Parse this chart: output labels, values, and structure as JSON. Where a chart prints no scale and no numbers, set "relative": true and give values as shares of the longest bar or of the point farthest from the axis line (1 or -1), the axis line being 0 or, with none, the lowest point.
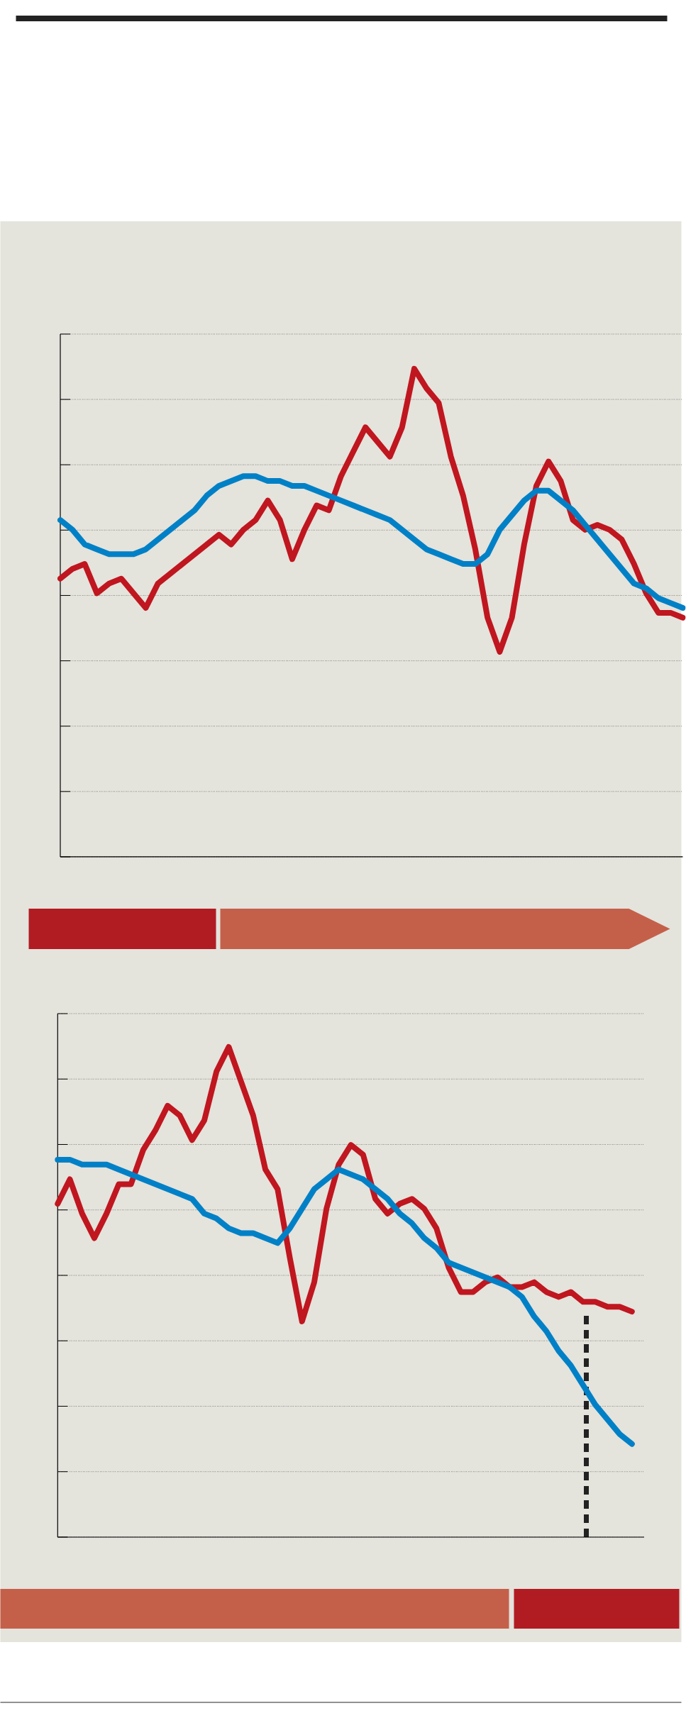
{
  "chart_data": [
    {
      "type": "line",
      "relative": true,
      "grid": "y",
      "categories": [
        null,
        null,
        null,
        null,
        null,
        null,
        null,
        null,
        null,
        null,
        null,
        null,
        null,
        null,
        null,
        null,
        null,
        null,
        null,
        null,
        null,
        null,
        null,
        null,
        null,
        null,
        null,
        null,
        null,
        null,
        null,
        null,
        null,
        null,
        null,
        null,
        null,
        null,
        null,
        null,
        null,
        null,
        null,
        null,
        null,
        null,
        null,
        null,
        null,
        null,
        null,
        null
      ],
      "series": [
        {
          "color": "#c0161f",
          "values": [
            0.57,
            0.59,
            0.6,
            0.54,
            0.56,
            0.57,
            0.54,
            0.51,
            0.56,
            0.58,
            0.6,
            0.62,
            0.64,
            0.66,
            0.64,
            0.67,
            0.69,
            0.73,
            0.69,
            0.61,
            0.67,
            0.72,
            0.71,
            0.78,
            0.83,
            0.88,
            0.85,
            0.82,
            0.88,
            1.0,
            0.96,
            0.93,
            0.82,
            0.74,
            0.63,
            0.49,
            0.42,
            0.49,
            0.64,
            0.76,
            0.81,
            0.77,
            0.69,
            0.67,
            0.68,
            0.67,
            0.65,
            0.6,
            0.54,
            0.5,
            0.5,
            0.49
          ]
        },
        {
          "color": "#0080c6",
          "values": [
            0.69,
            0.67,
            0.64,
            0.63,
            0.62,
            0.62,
            0.62,
            0.63,
            0.65,
            0.67,
            0.69,
            0.71,
            0.74,
            0.76,
            0.77,
            0.78,
            0.78,
            0.77,
            0.77,
            0.76,
            0.76,
            0.75,
            0.74,
            0.73,
            0.72,
            0.71,
            0.7,
            0.69,
            0.67,
            0.65,
            0.63,
            0.62,
            0.61,
            0.6,
            0.6,
            0.62,
            0.67,
            0.7,
            0.73,
            0.75,
            0.75,
            0.73,
            0.71,
            0.68,
            0.65,
            0.62,
            0.59,
            0.56,
            0.55,
            0.53,
            0.52,
            0.51
          ]
        }
      ]
    },
    {
      "type": "line",
      "relative": true,
      "grid": "y",
      "categories": [
        null,
        null,
        null,
        null,
        null,
        null,
        null,
        null,
        null,
        null,
        null,
        null,
        null,
        null,
        null,
        null,
        null,
        null,
        null,
        null,
        null,
        null,
        null,
        null,
        null,
        null,
        null,
        null,
        null,
        null,
        null,
        null,
        null,
        null,
        null,
        null,
        null,
        null,
        null,
        null,
        null,
        null,
        null,
        null,
        null,
        null,
        null,
        null,
        null
      ],
      "series": [
        {
          "color": "#c0161f",
          "values": [
            0.68,
            0.73,
            0.66,
            0.61,
            0.66,
            0.72,
            0.72,
            0.79,
            0.83,
            0.88,
            0.86,
            0.81,
            0.85,
            0.95,
            1.0,
            0.93,
            0.86,
            0.75,
            0.71,
            0.57,
            0.44,
            0.52,
            0.67,
            0.76,
            0.8,
            0.78,
            0.69,
            0.66,
            0.68,
            0.69,
            0.67,
            0.63,
            0.55,
            0.5,
            0.5,
            0.52,
            0.53,
            0.51,
            0.51,
            0.52,
            0.5,
            0.49,
            0.5,
            0.48,
            0.48,
            0.47,
            0.47,
            0.46,
            null
          ]
        },
        {
          "color": "#0080c6",
          "values": [
            0.77,
            0.77,
            0.76,
            0.76,
            0.76,
            0.75,
            0.74,
            0.73,
            0.72,
            0.71,
            0.7,
            0.69,
            0.66,
            0.65,
            0.63,
            0.62,
            0.62,
            0.61,
            0.6,
            0.63,
            0.67,
            0.71,
            0.73,
            0.75,
            0.74,
            0.73,
            0.71,
            0.69,
            0.66,
            0.64,
            0.61,
            0.59,
            0.56,
            0.55,
            0.54,
            0.53,
            0.52,
            0.51,
            0.49,
            0.45,
            0.42,
            0.38,
            0.35,
            0.31,
            0.27,
            0.24,
            0.21,
            0.19,
            null
          ]
        }
      ]
    }
  ]
}
